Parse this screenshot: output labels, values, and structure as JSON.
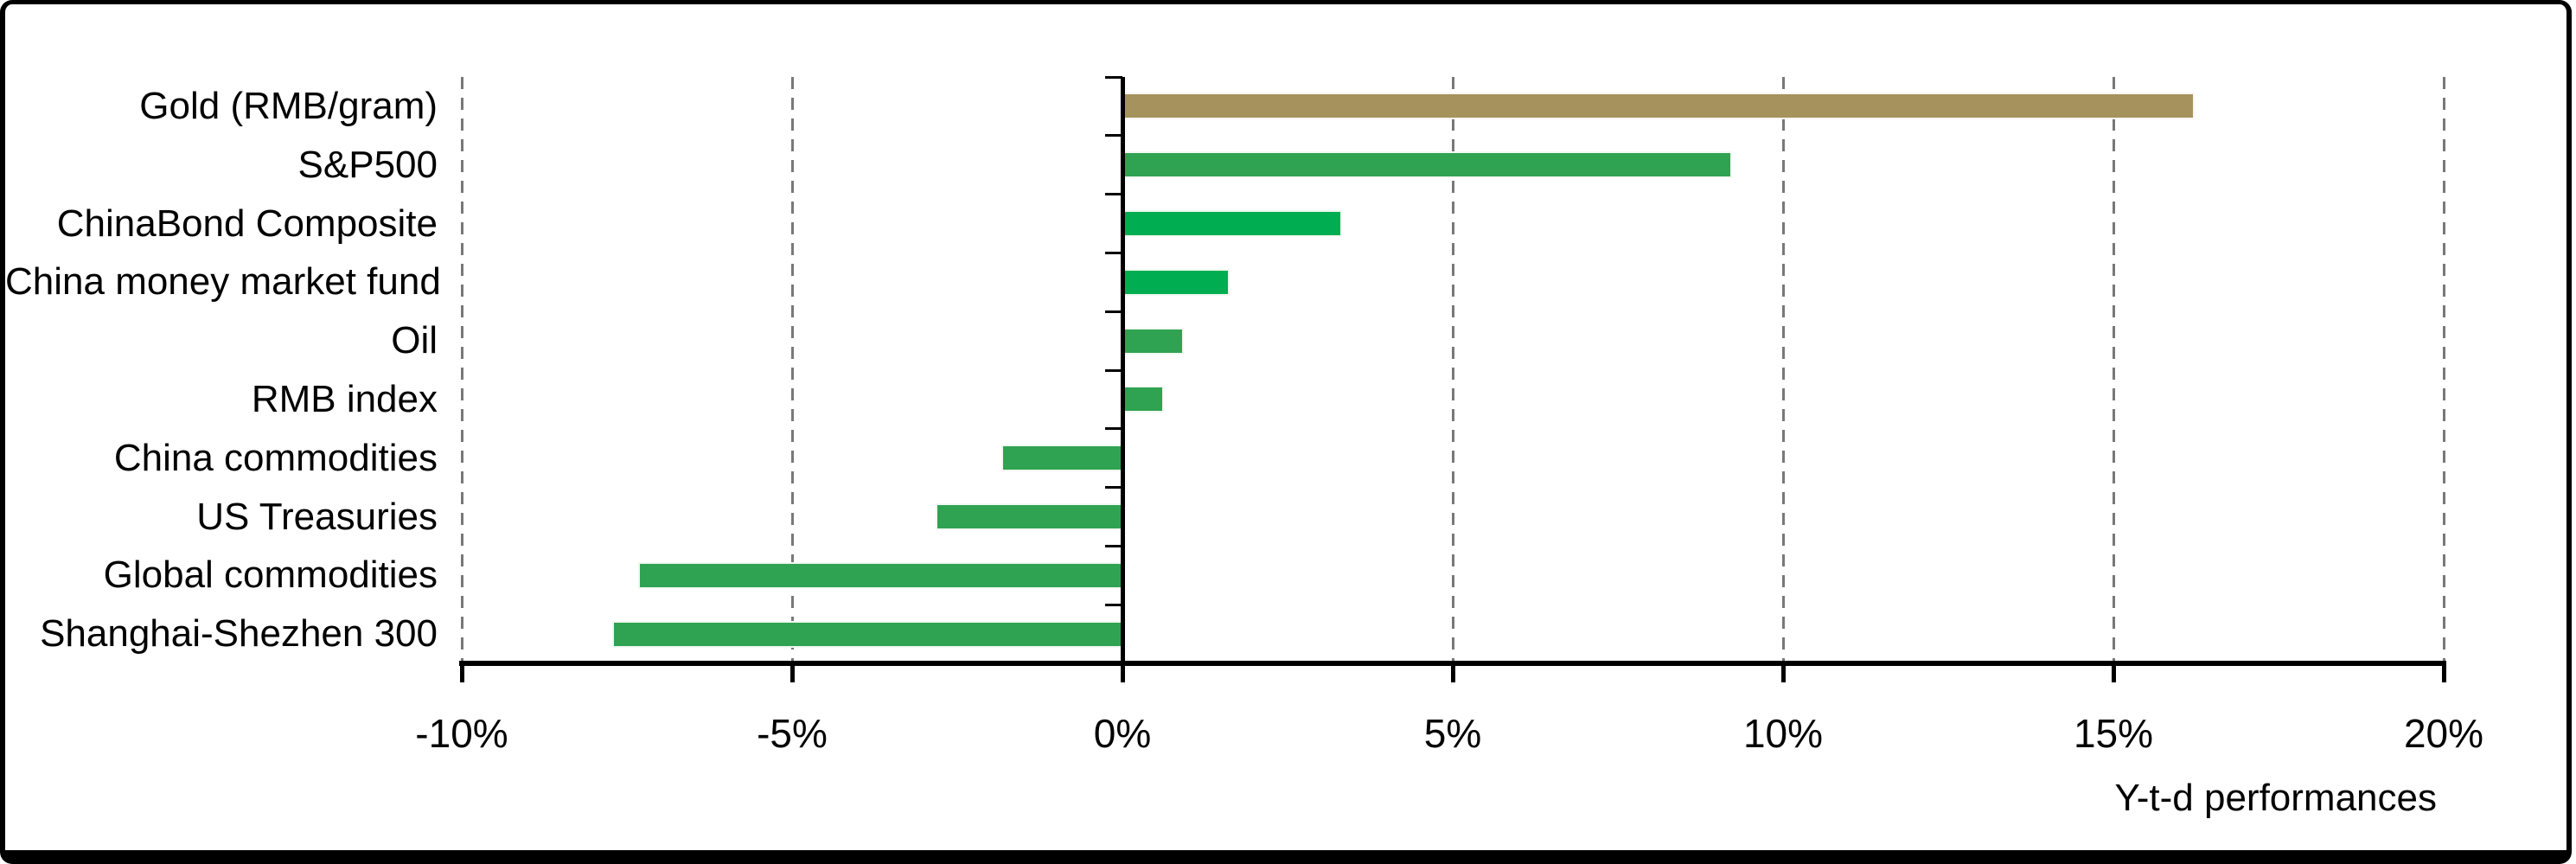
{
  "chart_data": {
    "type": "bar",
    "orientation": "horizontal",
    "title": "",
    "xlabel": "Y-t-d performances",
    "ylabel": "",
    "categories": [
      "Gold (RMB/gram)",
      "S&P500",
      "ChinaBond Composite",
      "China money market fund",
      "Oil",
      "RMB index",
      "China commodities",
      "US Treasuries",
      "Global commodities",
      "Shanghai-Shezhen 300"
    ],
    "values": [
      16.2,
      9.2,
      3.3,
      1.6,
      0.9,
      0.6,
      -1.8,
      -2.8,
      -7.3,
      -7.7
    ],
    "unit": "%",
    "bar_colors": [
      "#A6925C",
      "#2FA351",
      "#00AD50",
      "#00AD50",
      "#2FA351",
      "#2FA351",
      "#2FA351",
      "#2FA351",
      "#2FA351",
      "#2FA351"
    ],
    "xlim": [
      -10,
      20
    ],
    "x_tick_values": [
      -10,
      -5,
      0,
      5,
      10,
      15,
      20
    ],
    "x_tick_labels": [
      "-10%",
      "-5%",
      "0%",
      "5%",
      "10%",
      "15%",
      "20%"
    ],
    "grid": "vertical dashed, at every 5% except 0",
    "gridline_color": "#787878",
    "axis_color": "#000000",
    "legend": "none"
  }
}
